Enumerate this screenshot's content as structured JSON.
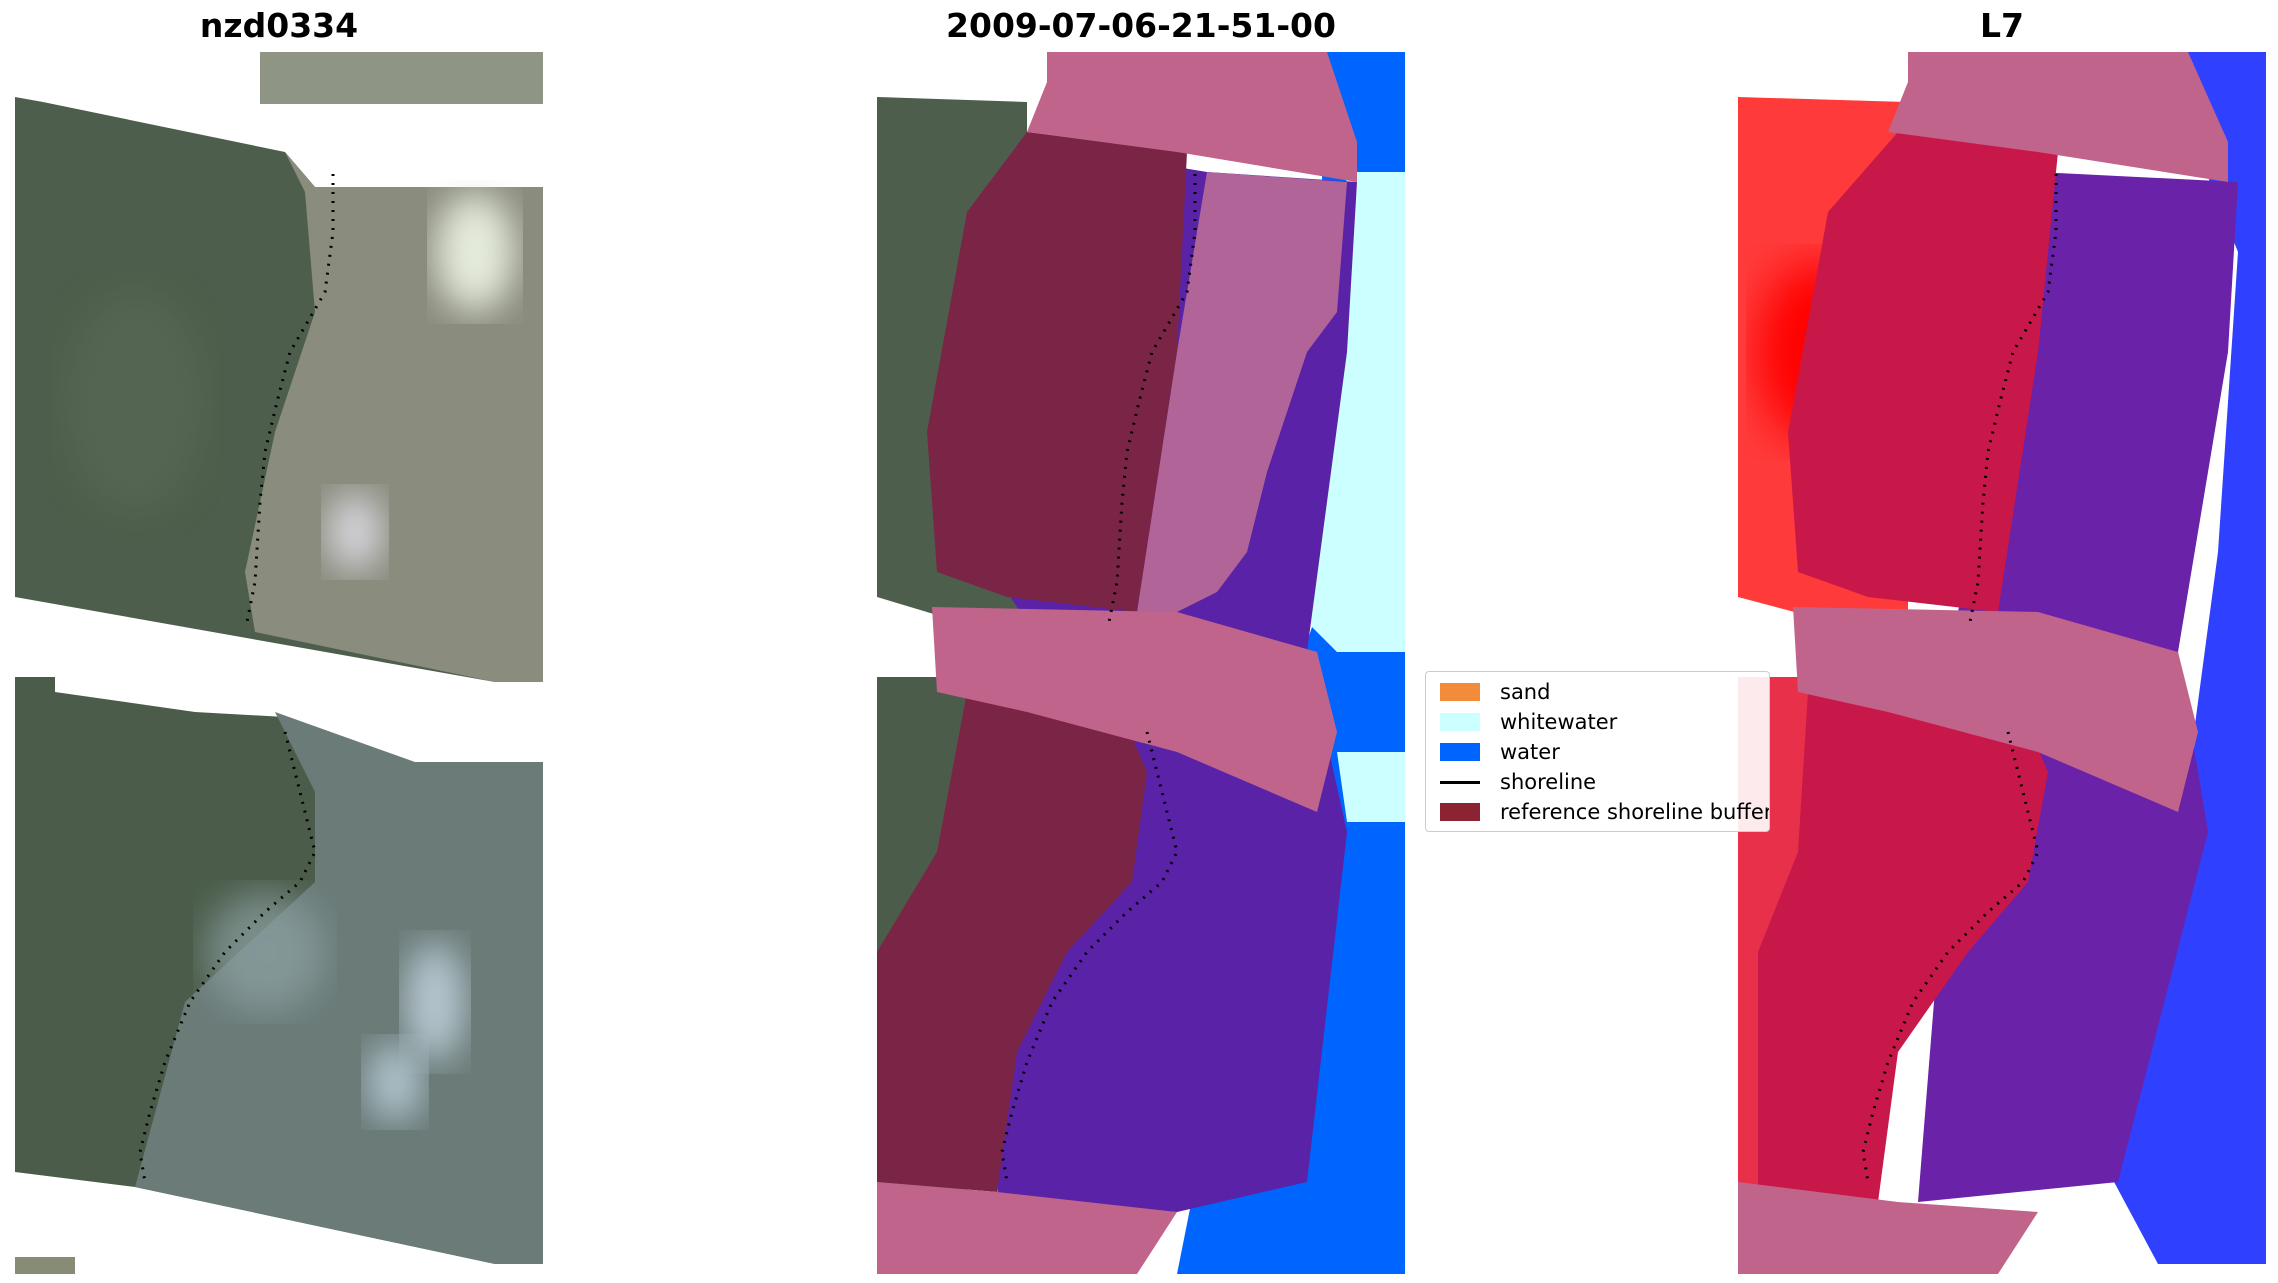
{
  "panels": [
    {
      "id": "rgb",
      "title": "nzd0334"
    },
    {
      "id": "classified",
      "title": "2009-07-06-21-51-00"
    },
    {
      "id": "index",
      "title": "L7"
    }
  ],
  "legend": {
    "items": [
      {
        "label": "sand",
        "color": "#f28c3a",
        "type": "patch"
      },
      {
        "label": "whitewater",
        "color": "#ccffff",
        "type": "patch"
      },
      {
        "label": "water",
        "color": "#0064ff",
        "type": "patch"
      },
      {
        "label": "shoreline",
        "color": "#000000",
        "type": "line"
      },
      {
        "label": "reference shoreline buffer",
        "color": "#8b2333",
        "type": "patch"
      }
    ]
  },
  "colors": {
    "vegetation": "#4c5e4a",
    "beach": "#8e9080",
    "buffer_pink": "#c0648c",
    "sea_purple": "#5a22a6",
    "land_red": "#c81e3c",
    "bright_red": "#ff2a2a",
    "deep_blue": "#2020ff"
  }
}
